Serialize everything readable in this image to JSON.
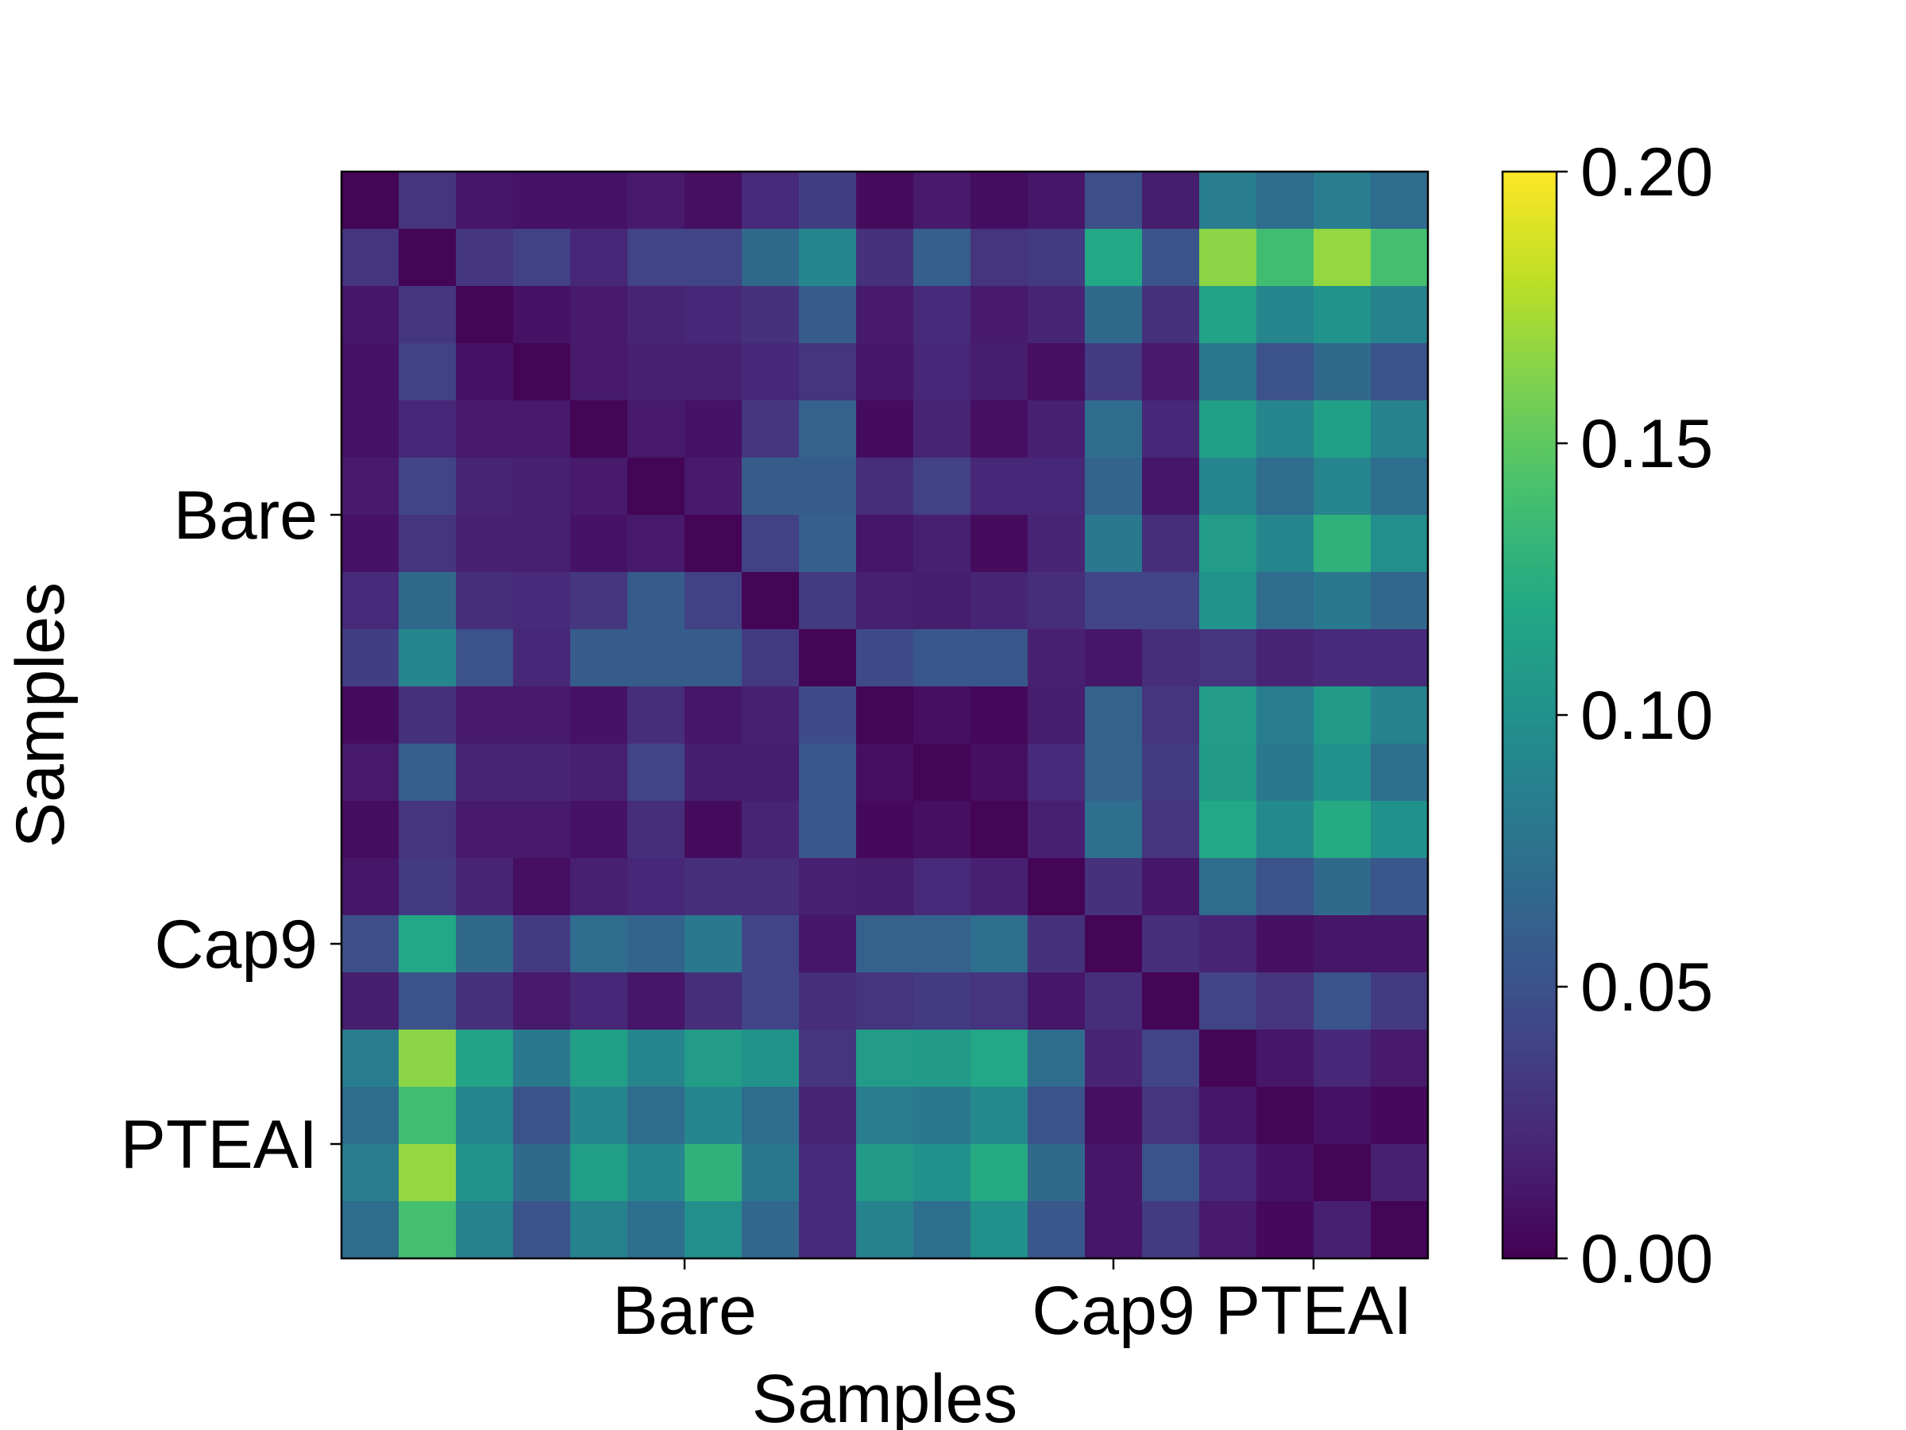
{
  "chart_data": {
    "type": "heatmap",
    "title": "",
    "xlabel": "Samples",
    "ylabel": "Samples",
    "x_tick_labels": [
      "Bare",
      "Cap9",
      "PTEAI"
    ],
    "x_tick_positions": [
      5.5,
      13,
      16.5
    ],
    "y_tick_labels": [
      "Bare",
      "Cap9",
      "PTEAI"
    ],
    "y_tick_positions": [
      5.5,
      13,
      16.5
    ],
    "colormap": "viridis",
    "colorbar": {
      "range": [
        0.0,
        0.2
      ],
      "ticks": [
        0.0,
        0.05,
        0.1,
        0.15,
        0.2
      ],
      "tick_labels": [
        "0.00",
        "0.05",
        "0.10",
        "0.15",
        "0.20"
      ]
    },
    "grid": false,
    "rows": 19,
    "cols": 19,
    "values": [
      [
        0.002,
        0.03,
        0.012,
        0.01,
        0.01,
        0.014,
        0.008,
        0.024,
        0.036,
        0.006,
        0.014,
        0.007,
        0.012,
        0.048,
        0.016,
        0.085,
        0.07,
        0.085,
        0.07
      ],
      [
        0.03,
        0.002,
        0.032,
        0.038,
        0.022,
        0.04,
        0.04,
        0.068,
        0.092,
        0.028,
        0.06,
        0.03,
        0.034,
        0.12,
        0.052,
        0.165,
        0.138,
        0.168,
        0.14
      ],
      [
        0.012,
        0.032,
        0.002,
        0.01,
        0.014,
        0.02,
        0.022,
        0.028,
        0.058,
        0.014,
        0.024,
        0.014,
        0.02,
        0.068,
        0.028,
        0.115,
        0.09,
        0.102,
        0.088
      ],
      [
        0.01,
        0.038,
        0.01,
        0.002,
        0.014,
        0.018,
        0.018,
        0.022,
        0.03,
        0.012,
        0.022,
        0.016,
        0.008,
        0.034,
        0.014,
        0.08,
        0.05,
        0.068,
        0.052
      ],
      [
        0.01,
        0.022,
        0.014,
        0.014,
        0.002,
        0.014,
        0.01,
        0.032,
        0.062,
        0.006,
        0.02,
        0.008,
        0.018,
        0.07,
        0.022,
        0.112,
        0.09,
        0.112,
        0.088
      ],
      [
        0.014,
        0.04,
        0.02,
        0.018,
        0.014,
        0.002,
        0.014,
        0.058,
        0.058,
        0.026,
        0.038,
        0.022,
        0.022,
        0.064,
        0.012,
        0.09,
        0.07,
        0.09,
        0.072
      ],
      [
        0.01,
        0.03,
        0.018,
        0.018,
        0.01,
        0.014,
        0.002,
        0.038,
        0.06,
        0.012,
        0.018,
        0.006,
        0.02,
        0.08,
        0.026,
        0.11,
        0.092,
        0.128,
        0.098
      ],
      [
        0.024,
        0.068,
        0.026,
        0.024,
        0.032,
        0.058,
        0.038,
        0.002,
        0.034,
        0.018,
        0.016,
        0.02,
        0.026,
        0.04,
        0.04,
        0.102,
        0.07,
        0.08,
        0.066
      ],
      [
        0.036,
        0.092,
        0.05,
        0.022,
        0.058,
        0.058,
        0.058,
        0.034,
        0.002,
        0.046,
        0.054,
        0.054,
        0.018,
        0.012,
        0.026,
        0.03,
        0.02,
        0.024,
        0.024
      ],
      [
        0.006,
        0.028,
        0.014,
        0.014,
        0.01,
        0.026,
        0.012,
        0.018,
        0.046,
        0.002,
        0.008,
        0.004,
        0.016,
        0.062,
        0.03,
        0.11,
        0.084,
        0.108,
        0.088
      ],
      [
        0.014,
        0.06,
        0.02,
        0.02,
        0.018,
        0.04,
        0.016,
        0.016,
        0.054,
        0.008,
        0.002,
        0.008,
        0.024,
        0.062,
        0.034,
        0.108,
        0.08,
        0.1,
        0.072
      ],
      [
        0.007,
        0.03,
        0.014,
        0.014,
        0.01,
        0.026,
        0.006,
        0.02,
        0.054,
        0.004,
        0.008,
        0.002,
        0.018,
        0.072,
        0.03,
        0.12,
        0.094,
        0.122,
        0.1
      ],
      [
        0.012,
        0.034,
        0.02,
        0.008,
        0.018,
        0.022,
        0.026,
        0.026,
        0.018,
        0.016,
        0.024,
        0.018,
        0.002,
        0.028,
        0.012,
        0.07,
        0.05,
        0.068,
        0.054
      ],
      [
        0.048,
        0.12,
        0.068,
        0.034,
        0.07,
        0.064,
        0.08,
        0.04,
        0.012,
        0.062,
        0.062,
        0.072,
        0.028,
        0.002,
        0.026,
        0.02,
        0.008,
        0.012,
        0.012
      ],
      [
        0.016,
        0.052,
        0.028,
        0.014,
        0.022,
        0.012,
        0.026,
        0.04,
        0.026,
        0.03,
        0.034,
        0.03,
        0.012,
        0.026,
        0.002,
        0.04,
        0.03,
        0.052,
        0.034
      ],
      [
        0.085,
        0.165,
        0.115,
        0.08,
        0.112,
        0.09,
        0.11,
        0.102,
        0.03,
        0.11,
        0.108,
        0.12,
        0.07,
        0.02,
        0.04,
        0.002,
        0.012,
        0.022,
        0.014
      ],
      [
        0.07,
        0.138,
        0.09,
        0.05,
        0.09,
        0.07,
        0.092,
        0.07,
        0.02,
        0.084,
        0.08,
        0.094,
        0.05,
        0.008,
        0.03,
        0.012,
        0.002,
        0.01,
        0.004
      ],
      [
        0.085,
        0.168,
        0.102,
        0.068,
        0.112,
        0.09,
        0.128,
        0.08,
        0.024,
        0.108,
        0.1,
        0.122,
        0.068,
        0.012,
        0.052,
        0.022,
        0.01,
        0.002,
        0.018
      ],
      [
        0.07,
        0.14,
        0.088,
        0.052,
        0.088,
        0.072,
        0.098,
        0.066,
        0.024,
        0.088,
        0.072,
        0.1,
        0.054,
        0.012,
        0.034,
        0.014,
        0.004,
        0.018,
        0.002
      ]
    ]
  }
}
